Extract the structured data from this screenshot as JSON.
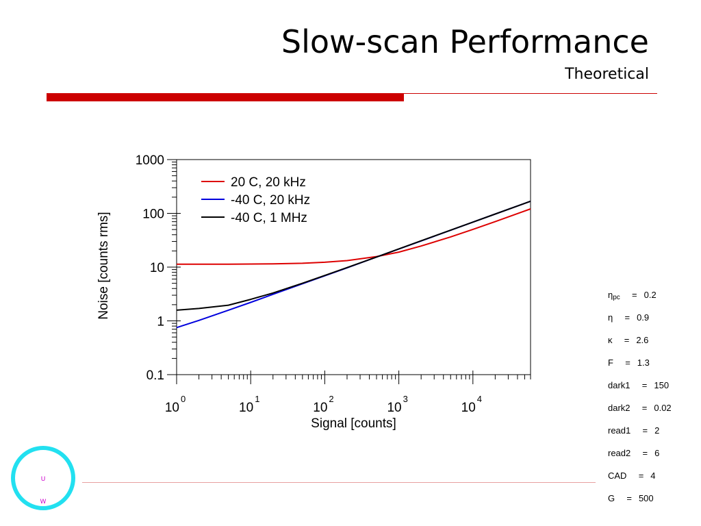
{
  "slide": {
    "title": "Slow-scan Performance",
    "subtitle": "Theoretical"
  },
  "colors": {
    "accent": "#cc0000",
    "series_red": "#dd0000",
    "series_blue": "#0000dd",
    "series_black": "#000000",
    "logo_ring": "#22e0f0",
    "logo_letters": "#cc00cc"
  },
  "chart_data": {
    "type": "line",
    "xlabel": "Signal [counts]",
    "ylabel": "Noise [counts rms]",
    "xscale": "log",
    "yscale": "log",
    "xlim": [
      1,
      60000
    ],
    "ylim": [
      0.1,
      1000
    ],
    "x_ticks": [
      {
        "base": "10",
        "exp": "0"
      },
      {
        "base": "10",
        "exp": "1"
      },
      {
        "base": "10",
        "exp": "2"
      },
      {
        "base": "10",
        "exp": "3"
      },
      {
        "base": "10",
        "exp": "4"
      }
    ],
    "y_ticks": [
      "0.1",
      "1",
      "10",
      "100",
      "1000"
    ],
    "legend_position": "top-left",
    "x": [
      1,
      2,
      5,
      10,
      20,
      50,
      100,
      200,
      500,
      1000,
      2000,
      5000,
      10000,
      20000,
      60000
    ],
    "series": [
      {
        "name": "20 C, 20 kHz",
        "color": "#dd0000",
        "values": [
          11.3,
          11.3,
          11.3,
          11.4,
          11.5,
          11.8,
          12.3,
          13.2,
          15.7,
          19.0,
          24.7,
          36.5,
          50.3,
          70.2,
          121.0
        ]
      },
      {
        "name": "-40 C, 20 kHz",
        "color": "#0000dd",
        "values": [
          0.75,
          1.02,
          1.58,
          2.21,
          3.12,
          4.9,
          6.9,
          9.7,
          15.4,
          21.7,
          30.7,
          48.5,
          68.6,
          97.0,
          168.0
        ]
      },
      {
        "name": "-40 C, 1 MHz",
        "color": "#000000",
        "values": [
          1.58,
          1.7,
          1.96,
          2.51,
          3.3,
          5.0,
          7.0,
          9.8,
          15.4,
          21.8,
          30.8,
          48.6,
          68.7,
          97.1,
          168.0
        ]
      }
    ]
  },
  "params": [
    {
      "name": "η",
      "sub": "pc",
      "eq": "=",
      "value": "0.2"
    },
    {
      "name": "η",
      "sub": "",
      "eq": "=",
      "value": "0.9"
    },
    {
      "name": "κ",
      "sub": "",
      "eq": "=",
      "value": "2.6"
    },
    {
      "name": "F",
      "sub": "",
      "eq": "=",
      "value": "1.3"
    },
    {
      "name": "dark1",
      "sub": "",
      "eq": "=",
      "value": "150"
    },
    {
      "name": "dark2",
      "sub": "",
      "eq": "=",
      "value": "0.02"
    },
    {
      "name": "read1",
      "sub": "",
      "eq": "=",
      "value": "2"
    },
    {
      "name": "read2",
      "sub": "",
      "eq": "=",
      "value": "6"
    },
    {
      "name": "CAD",
      "sub": "",
      "eq": "=",
      "value": "4"
    },
    {
      "name": "G",
      "sub": "",
      "eq": "=",
      "value": "500"
    }
  ],
  "logo": {
    "letters": [
      "U",
      "W"
    ]
  }
}
